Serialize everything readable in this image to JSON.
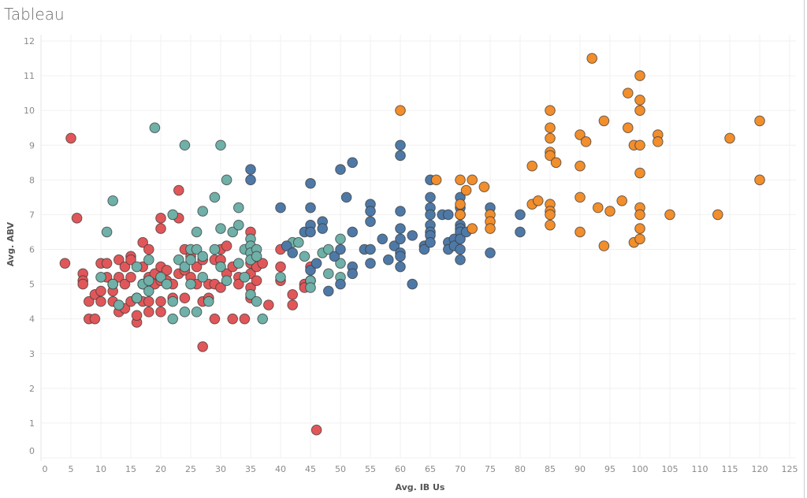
{
  "title": "Tableau",
  "chart_data": {
    "type": "scatter",
    "title": "",
    "xlabel": "Avg. IB Us",
    "ylabel": "Avg. ABV",
    "xlim": [
      0,
      125
    ],
    "ylim": [
      0,
      12
    ],
    "xticks": [
      0,
      5,
      10,
      15,
      20,
      25,
      30,
      35,
      40,
      45,
      50,
      55,
      60,
      65,
      70,
      75,
      80,
      85,
      90,
      95,
      100,
      105,
      110,
      115,
      120,
      125
    ],
    "yticks": [
      0,
      1,
      2,
      3,
      4,
      5,
      6,
      7,
      8,
      9,
      10,
      11,
      12
    ],
    "grid": true,
    "legend": "none",
    "series": [
      {
        "color": "#e15759",
        "points": [
          [
            5,
            9.2
          ],
          [
            6,
            6.9
          ],
          [
            4,
            5.6
          ],
          [
            7,
            5.3
          ],
          [
            7,
            5.1
          ],
          [
            7,
            5.0
          ],
          [
            8,
            4.5
          ],
          [
            8,
            4.0
          ],
          [
            9,
            4.0
          ],
          [
            9,
            4.7
          ],
          [
            10,
            5.6
          ],
          [
            10,
            4.8
          ],
          [
            10,
            4.5
          ],
          [
            11,
            5.6
          ],
          [
            11,
            5.2
          ],
          [
            12,
            5.0
          ],
          [
            12,
            4.8
          ],
          [
            12,
            4.5
          ],
          [
            13,
            5.7
          ],
          [
            13,
            4.2
          ],
          [
            13,
            5.2
          ],
          [
            14,
            4.3
          ],
          [
            14,
            5.0
          ],
          [
            14,
            5.5
          ],
          [
            15,
            5.8
          ],
          [
            15,
            5.7
          ],
          [
            15,
            5.2
          ],
          [
            15,
            4.5
          ],
          [
            16,
            3.9
          ],
          [
            16,
            4.1
          ],
          [
            16,
            4.6
          ],
          [
            17,
            6.2
          ],
          [
            17,
            5.5
          ],
          [
            17,
            5.0
          ],
          [
            17,
            4.5
          ],
          [
            18,
            6.0
          ],
          [
            18,
            4.2
          ],
          [
            18,
            4.5
          ],
          [
            18,
            5.2
          ],
          [
            19,
            5.0
          ],
          [
            19,
            5.3
          ],
          [
            20,
            6.9
          ],
          [
            20,
            6.6
          ],
          [
            20,
            5.5
          ],
          [
            20,
            5.1
          ],
          [
            20,
            4.5
          ],
          [
            20,
            4.2
          ],
          [
            21,
            5.4
          ],
          [
            21,
            5.1
          ],
          [
            22,
            5.0
          ],
          [
            22,
            4.6
          ],
          [
            23,
            7.7
          ],
          [
            23,
            6.9
          ],
          [
            23,
            5.3
          ],
          [
            24,
            6.0
          ],
          [
            24,
            5.4
          ],
          [
            24,
            4.6
          ],
          [
            25,
            5.8
          ],
          [
            25,
            5.2
          ],
          [
            26,
            5.5
          ],
          [
            26,
            5.0
          ],
          [
            27,
            3.2
          ],
          [
            27,
            5.7
          ],
          [
            27,
            4.5
          ],
          [
            28,
            5.0
          ],
          [
            28,
            4.6
          ],
          [
            29,
            5.7
          ],
          [
            29,
            5.0
          ],
          [
            29,
            4.0
          ],
          [
            30,
            6.0
          ],
          [
            30,
            5.7
          ],
          [
            30,
            4.9
          ],
          [
            31,
            6.1
          ],
          [
            31,
            5.3
          ],
          [
            32,
            5.5
          ],
          [
            32,
            4.0
          ],
          [
            33,
            5.2
          ],
          [
            33,
            5.0
          ],
          [
            34,
            4.0
          ],
          [
            35,
            6.5
          ],
          [
            35,
            6.0
          ],
          [
            35,
            5.6
          ],
          [
            35,
            5.3
          ],
          [
            35,
            4.9
          ],
          [
            35,
            4.6
          ],
          [
            36,
            5.5
          ],
          [
            36,
            5.1
          ],
          [
            37,
            5.6
          ],
          [
            38,
            4.4
          ],
          [
            40,
            6.0
          ],
          [
            40,
            5.5
          ],
          [
            40,
            5.1
          ],
          [
            42,
            4.7
          ],
          [
            42,
            4.4
          ],
          [
            44,
            5.0
          ],
          [
            44,
            4.9
          ],
          [
            45,
            5.5
          ],
          [
            45,
            5.1
          ],
          [
            46,
            0.8
          ]
        ]
      },
      {
        "color": "#6fb0a8",
        "points": [
          [
            12,
            7.4
          ],
          [
            11,
            6.5
          ],
          [
            10,
            5.2
          ],
          [
            12,
            5.0
          ],
          [
            13,
            4.4
          ],
          [
            16,
            5.5
          ],
          [
            16,
            4.6
          ],
          [
            17,
            5.0
          ],
          [
            18,
            5.7
          ],
          [
            18,
            5.1
          ],
          [
            18,
            4.8
          ],
          [
            19,
            9.5
          ],
          [
            20,
            5.2
          ],
          [
            21,
            5.0
          ],
          [
            22,
            7.0
          ],
          [
            22,
            4.5
          ],
          [
            22,
            4.0
          ],
          [
            23,
            5.7
          ],
          [
            24,
            9.0
          ],
          [
            24,
            5.5
          ],
          [
            24,
            4.2
          ],
          [
            25,
            6.0
          ],
          [
            25,
            5.7
          ],
          [
            25,
            5.0
          ],
          [
            26,
            6.5
          ],
          [
            26,
            4.2
          ],
          [
            26,
            6.0
          ],
          [
            27,
            7.1
          ],
          [
            27,
            5.8
          ],
          [
            27,
            5.2
          ],
          [
            28,
            4.5
          ],
          [
            29,
            7.5
          ],
          [
            29,
            6.0
          ],
          [
            30,
            9.0
          ],
          [
            30,
            6.6
          ],
          [
            30,
            5.5
          ],
          [
            31,
            8.0
          ],
          [
            31,
            5.1
          ],
          [
            32,
            6.5
          ],
          [
            33,
            7.2
          ],
          [
            33,
            6.7
          ],
          [
            33,
            5.6
          ],
          [
            34,
            6.0
          ],
          [
            34,
            5.2
          ],
          [
            35,
            6.3
          ],
          [
            35,
            6.1
          ],
          [
            35,
            5.9
          ],
          [
            35,
            5.7
          ],
          [
            35,
            4.7
          ],
          [
            36,
            6.0
          ],
          [
            36,
            5.8
          ],
          [
            36,
            4.5
          ],
          [
            37,
            4.0
          ],
          [
            40,
            5.2
          ],
          [
            42,
            6.2
          ],
          [
            43,
            6.2
          ],
          [
            44,
            5.8
          ],
          [
            45,
            5.1
          ],
          [
            45,
            4.9
          ],
          [
            47,
            5.9
          ],
          [
            48,
            6.0
          ],
          [
            48,
            5.3
          ],
          [
            50,
            6.3
          ],
          [
            50,
            5.6
          ],
          [
            50,
            5.2
          ]
        ]
      },
      {
        "color": "#4e79a7",
        "points": [
          [
            35,
            8.3
          ],
          [
            35,
            8.0
          ],
          [
            40,
            7.2
          ],
          [
            41,
            6.1
          ],
          [
            42,
            5.9
          ],
          [
            44,
            6.5
          ],
          [
            45,
            7.9
          ],
          [
            45,
            7.2
          ],
          [
            45,
            6.7
          ],
          [
            45,
            6.5
          ],
          [
            45,
            5.4
          ],
          [
            46,
            5.6
          ],
          [
            47,
            6.8
          ],
          [
            47,
            6.6
          ],
          [
            48,
            4.8
          ],
          [
            49,
            5.8
          ],
          [
            50,
            8.3
          ],
          [
            50,
            6.0
          ],
          [
            50,
            5.0
          ],
          [
            51,
            7.5
          ],
          [
            52,
            8.5
          ],
          [
            52,
            6.5
          ],
          [
            52,
            5.5
          ],
          [
            52,
            5.3
          ],
          [
            54,
            6.0
          ],
          [
            55,
            7.3
          ],
          [
            55,
            7.1
          ],
          [
            55,
            6.8
          ],
          [
            55,
            6.0
          ],
          [
            55,
            5.6
          ],
          [
            57,
            6.3
          ],
          [
            58,
            5.7
          ],
          [
            59,
            6.1
          ],
          [
            60,
            9.0
          ],
          [
            60,
            8.7
          ],
          [
            60,
            7.1
          ],
          [
            60,
            6.6
          ],
          [
            60,
            6.3
          ],
          [
            60,
            5.9
          ],
          [
            60,
            5.8
          ],
          [
            60,
            5.5
          ],
          [
            62,
            6.4
          ],
          [
            62,
            5.0
          ],
          [
            64,
            6.1
          ],
          [
            64,
            6.0
          ],
          [
            65,
            8.0
          ],
          [
            65,
            7.5
          ],
          [
            65,
            7.2
          ],
          [
            65,
            7.0
          ],
          [
            65,
            6.7
          ],
          [
            65,
            6.5
          ],
          [
            65,
            6.4
          ],
          [
            65,
            6.2
          ],
          [
            67,
            7.0
          ],
          [
            68,
            7.0
          ],
          [
            68,
            6.2
          ],
          [
            68,
            6.0
          ],
          [
            69,
            6.3
          ],
          [
            69,
            6.1
          ],
          [
            70,
            7.5
          ],
          [
            70,
            7.2
          ],
          [
            70,
            7.0
          ],
          [
            70,
            6.7
          ],
          [
            70,
            6.6
          ],
          [
            70,
            6.5
          ],
          [
            70,
            6.3
          ],
          [
            70,
            6.0
          ],
          [
            70,
            5.7
          ],
          [
            71,
            6.5
          ],
          [
            75,
            7.2
          ],
          [
            75,
            5.9
          ],
          [
            80,
            7.0
          ],
          [
            80,
            6.5
          ]
        ]
      },
      {
        "color": "#f28e2b",
        "points": [
          [
            60,
            10.0
          ],
          [
            66,
            8.0
          ],
          [
            70,
            8.0
          ],
          [
            70,
            7.3
          ],
          [
            70,
            7.0
          ],
          [
            71,
            7.7
          ],
          [
            72,
            8.0
          ],
          [
            72,
            6.6
          ],
          [
            74,
            7.8
          ],
          [
            75,
            7.0
          ],
          [
            75,
            6.8
          ],
          [
            75,
            6.6
          ],
          [
            82,
            8.4
          ],
          [
            82,
            7.3
          ],
          [
            83,
            7.4
          ],
          [
            85,
            10.0
          ],
          [
            85,
            9.5
          ],
          [
            85,
            9.2
          ],
          [
            85,
            8.8
          ],
          [
            85,
            8.7
          ],
          [
            85,
            7.3
          ],
          [
            85,
            7.1
          ],
          [
            85,
            7.0
          ],
          [
            85,
            6.7
          ],
          [
            86,
            8.5
          ],
          [
            90,
            9.3
          ],
          [
            90,
            8.4
          ],
          [
            90,
            7.5
          ],
          [
            90,
            6.5
          ],
          [
            91,
            9.1
          ],
          [
            92,
            11.5
          ],
          [
            93,
            7.2
          ],
          [
            94,
            9.7
          ],
          [
            94,
            6.1
          ],
          [
            95,
            7.1
          ],
          [
            97,
            7.4
          ],
          [
            98,
            10.5
          ],
          [
            98,
            9.5
          ],
          [
            99,
            9.0
          ],
          [
            99,
            6.2
          ],
          [
            100,
            11.0
          ],
          [
            100,
            10.3
          ],
          [
            100,
            10.0
          ],
          [
            100,
            9.0
          ],
          [
            100,
            8.2
          ],
          [
            100,
            7.2
          ],
          [
            100,
            7.0
          ],
          [
            100,
            6.6
          ],
          [
            100,
            6.3
          ],
          [
            103,
            9.3
          ],
          [
            103,
            9.1
          ],
          [
            105,
            7.0
          ],
          [
            113,
            7.0
          ],
          [
            115,
            9.2
          ],
          [
            120,
            9.7
          ],
          [
            120,
            8.0
          ]
        ]
      }
    ]
  }
}
